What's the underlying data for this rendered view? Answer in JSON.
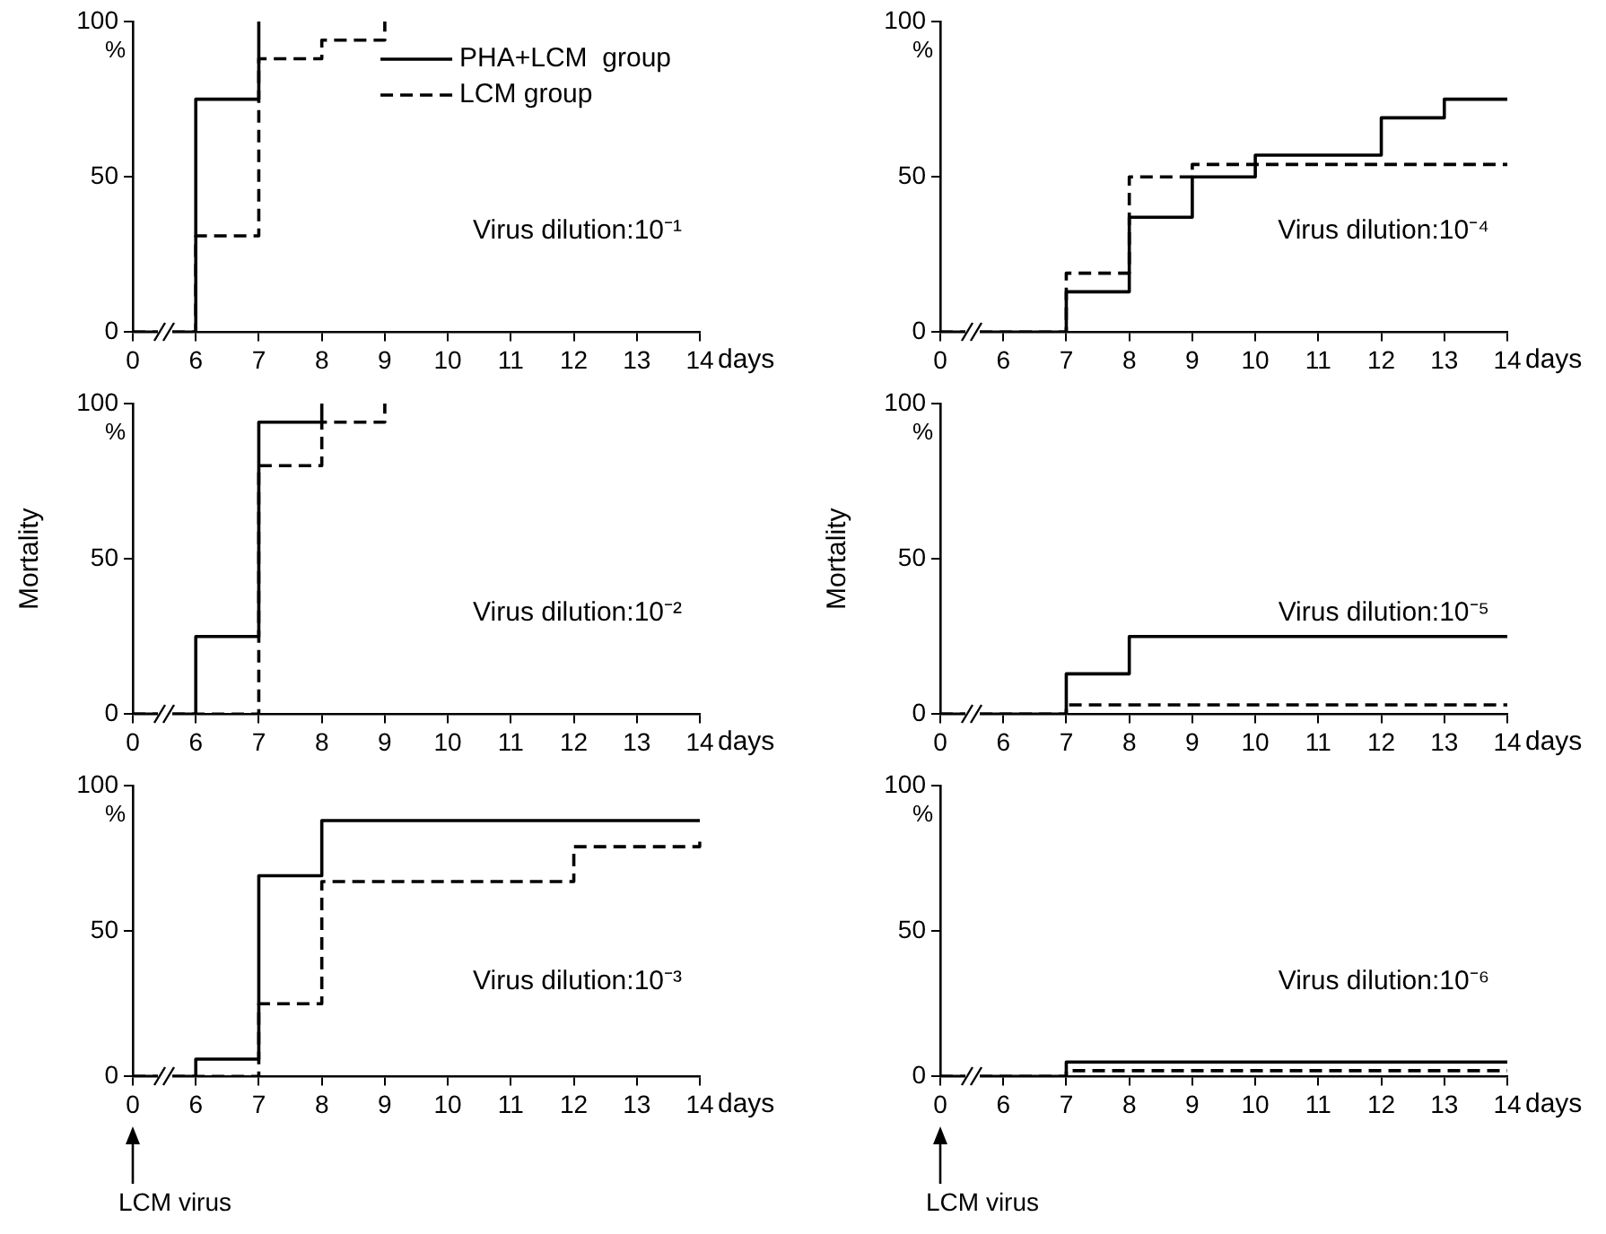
{
  "chart_data": [
    {
      "type": "step",
      "title": "Virus dilution:10⁻¹",
      "xlabel": "days",
      "categories": [
        "0",
        "6",
        "7",
        "8",
        "9",
        "10",
        "11",
        "12",
        "13",
        "14"
      ],
      "ylim": [
        0,
        100
      ],
      "yticks": [
        0,
        50,
        100
      ],
      "grid": false,
      "legend": "top right",
      "annotations": [
        "%"
      ],
      "series": [
        {
          "name": "PHA+LCM  group",
          "color": "#000000",
          "line_style": "solid",
          "values": [
            0,
            75,
            100,
            null,
            null,
            null,
            null,
            null,
            null,
            null
          ]
        },
        {
          "name": "LCM group",
          "color": "#000000",
          "line_style": "dashed",
          "values": [
            0,
            31,
            88,
            94,
            100,
            null,
            null,
            null,
            null,
            null
          ]
        }
      ]
    },
    {
      "type": "step",
      "title": "Virus dilution:10⁻⁴",
      "xlabel": "days",
      "categories": [
        "0",
        "6",
        "7",
        "8",
        "9",
        "10",
        "11",
        "12",
        "13",
        "14"
      ],
      "ylim": [
        0,
        100
      ],
      "yticks": [
        0,
        50,
        100
      ],
      "grid": false,
      "annotations": [
        "%"
      ],
      "series": [
        {
          "color": "#000000",
          "line_style": "solid",
          "values": [
            0,
            0,
            13,
            37,
            50,
            57,
            57,
            69,
            75,
            75
          ]
        },
        {
          "color": "#000000",
          "line_style": "dashed",
          "values": [
            0,
            0,
            19,
            50,
            54,
            54,
            54,
            54,
            54,
            54
          ]
        }
      ]
    },
    {
      "type": "step",
      "title": "Virus dilution:10⁻²",
      "xlabel": "days",
      "ylabel": "Mortality",
      "categories": [
        "0",
        "6",
        "7",
        "8",
        "9",
        "10",
        "11",
        "12",
        "13",
        "14"
      ],
      "ylim": [
        0,
        100
      ],
      "yticks": [
        0,
        50,
        100
      ],
      "grid": false,
      "annotations": [
        "%"
      ],
      "series": [
        {
          "color": "#000000",
          "line_style": "solid",
          "values": [
            0,
            25,
            94,
            100,
            null,
            null,
            null,
            null,
            null,
            null
          ]
        },
        {
          "color": "#000000",
          "line_style": "dashed",
          "values": [
            0,
            0,
            80,
            94,
            100,
            null,
            null,
            null,
            null,
            null
          ]
        }
      ]
    },
    {
      "type": "step",
      "title": "Virus dilution:10⁻⁵",
      "xlabel": "days",
      "ylabel": "Mortality",
      "categories": [
        "0",
        "6",
        "7",
        "8",
        "9",
        "10",
        "11",
        "12",
        "13",
        "14"
      ],
      "ylim": [
        0,
        100
      ],
      "yticks": [
        0,
        50,
        100
      ],
      "grid": false,
      "annotations": [
        "%"
      ],
      "series": [
        {
          "color": "#000000",
          "line_style": "solid",
          "values": [
            0,
            0,
            13,
            25,
            25,
            25,
            25,
            25,
            25,
            25
          ]
        },
        {
          "color": "#000000",
          "line_style": "dashed",
          "values": [
            0,
            0,
            3,
            3,
            3,
            3,
            3,
            3,
            3,
            3
          ]
        }
      ]
    },
    {
      "type": "step",
      "title": "Virus dilution:10⁻³",
      "xlabel": "days",
      "categories": [
        "0",
        "6",
        "7",
        "8",
        "9",
        "10",
        "11",
        "12",
        "13",
        "14"
      ],
      "ylim": [
        0,
        100
      ],
      "yticks": [
        0,
        50,
        100
      ],
      "grid": false,
      "annotations": [
        "%",
        "LCM virus"
      ],
      "series": [
        {
          "color": "#000000",
          "line_style": "solid",
          "values": [
            0,
            6,
            69,
            88,
            88,
            88,
            88,
            88,
            88,
            88
          ]
        },
        {
          "color": "#000000",
          "line_style": "dashed",
          "values": [
            0,
            0,
            25,
            67,
            67,
            67,
            67,
            79,
            79,
            81
          ]
        }
      ]
    },
    {
      "type": "step",
      "title": "Virus dilution:10⁻⁶",
      "xlabel": "days",
      "categories": [
        "0",
        "6",
        "7",
        "8",
        "9",
        "10",
        "11",
        "12",
        "13",
        "14"
      ],
      "ylim": [
        0,
        100
      ],
      "yticks": [
        0,
        50,
        100
      ],
      "grid": false,
      "annotations": [
        "%",
        "LCM virus"
      ],
      "series": [
        {
          "color": "#000000",
          "line_style": "solid",
          "values": [
            0,
            0,
            5,
            5,
            5,
            5,
            5,
            5,
            5,
            5
          ]
        },
        {
          "color": "#000000",
          "line_style": "dashed",
          "values": [
            0,
            0,
            2,
            2,
            2,
            2,
            2,
            2,
            2,
            2
          ]
        }
      ]
    }
  ]
}
